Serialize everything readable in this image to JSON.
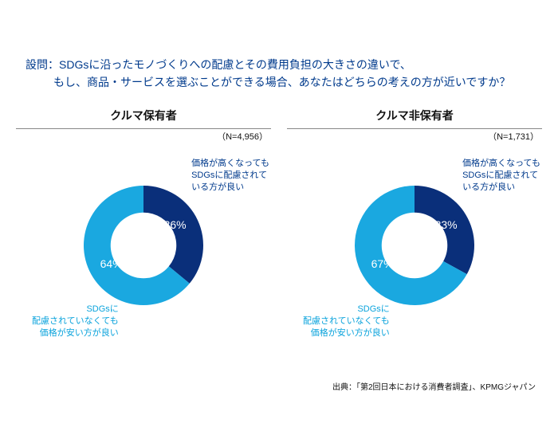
{
  "question": {
    "line1": "設問：SDGsに沿ったモノづくりへの配慮とその費用負担の大きさの違いで、",
    "line2": "もし、商品・サービスを選ぶことができる場合、あなたはどちらの考えの方が近いですか？"
  },
  "palette": {
    "dark": "#0a2f7a",
    "light": "#1aa8e0",
    "question_color": "#003a8c",
    "background": "#ffffff"
  },
  "source": "出典：「第2回日本における消費者調査」、KPMGジャパン",
  "charts": [
    {
      "title": "クルマ保有者",
      "n_label": "（N=4,956）",
      "type": "donut",
      "inner_ratio": 0.55,
      "segments": [
        {
          "key": "sdgs_priority",
          "value": 36,
          "pct_label": "36%",
          "color": "#0a2f7a",
          "legend_l1": "価格が高くなっても",
          "legend_l2": "SDGsに配慮されて",
          "legend_l3": "いる方が良い"
        },
        {
          "key": "price_priority",
          "value": 64,
          "pct_label": "64%",
          "color": "#1aa8e0",
          "legend_l1": "SDGsに",
          "legend_l2": "配慮されていなくても",
          "legend_l3": "価格が安い方が良い"
        }
      ]
    },
    {
      "title": "クルマ非保有者",
      "n_label": "（N=1,731）",
      "type": "donut",
      "inner_ratio": 0.55,
      "segments": [
        {
          "key": "sdgs_priority",
          "value": 33,
          "pct_label": "33%",
          "color": "#0a2f7a",
          "legend_l1": "価格が高くなっても",
          "legend_l2": "SDGsに配慮されて",
          "legend_l3": "いる方が良い"
        },
        {
          "key": "price_priority",
          "value": 67,
          "pct_label": "67%",
          "color": "#1aa8e0",
          "legend_l1": "SDGsに",
          "legend_l2": "配慮されていなくても",
          "legend_l3": "価格が安い方が良い"
        }
      ]
    }
  ]
}
